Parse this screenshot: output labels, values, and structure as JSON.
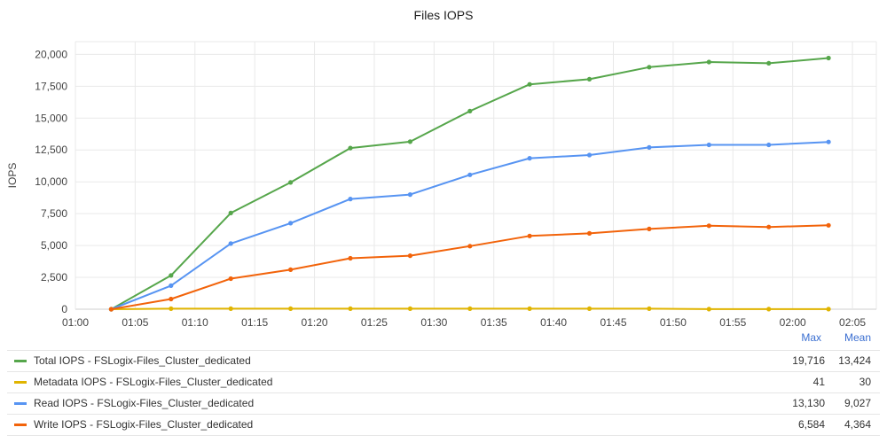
{
  "chart_data": {
    "type": "line",
    "title": "Files IOPS",
    "ylabel": "IOPS",
    "xlabel": "",
    "x_ticks": [
      "01:00",
      "01:05",
      "01:10",
      "01:15",
      "01:20",
      "01:25",
      "01:30",
      "01:35",
      "01:40",
      "01:45",
      "01:50",
      "01:55",
      "02:00",
      "02:05"
    ],
    "y_ticks": [
      "0",
      "2,500",
      "5,000",
      "7,500",
      "10,000",
      "12,500",
      "15,000",
      "17,500",
      "20,000"
    ],
    "xlim": [
      "01:00",
      "02:07"
    ],
    "ylim": [
      0,
      21000
    ],
    "grid": true,
    "legend_placement": "bottom",
    "x": [
      "01:03",
      "01:08",
      "01:13",
      "01:18",
      "01:23",
      "01:28",
      "01:33",
      "01:38",
      "01:43",
      "01:48",
      "01:53",
      "01:58",
      "02:03"
    ],
    "series": [
      {
        "name": "Total IOPS - FSLogix-Files_Cluster_dedicated",
        "color": "#56a64b",
        "values": [
          0,
          2650,
          7550,
          9950,
          12650,
          13150,
          15550,
          17650,
          18050,
          19000,
          19400,
          19300,
          19716
        ]
      },
      {
        "name": "Metadata IOPS - FSLogix-Files_Cluster_dedicated",
        "color": "#e0b400",
        "values": [
          0,
          40,
          41,
          40,
          40,
          40,
          40,
          40,
          40,
          40,
          5,
          5,
          5
        ]
      },
      {
        "name": "Read IOPS - FSLogix-Files_Cluster_dedicated",
        "color": "#5794f2",
        "values": [
          0,
          1850,
          5150,
          6750,
          8650,
          9000,
          10550,
          11850,
          12100,
          12700,
          12900,
          12900,
          13130
        ]
      },
      {
        "name": "Write IOPS - FSLogix-Files_Cluster_dedicated",
        "color": "#f2630a",
        "values": [
          0,
          800,
          2400,
          3100,
          4000,
          4200,
          4950,
          5750,
          5950,
          6300,
          6550,
          6450,
          6584
        ]
      }
    ]
  },
  "legend": {
    "max_header": "Max",
    "mean_header": "Mean",
    "rows": [
      {
        "name": "Total IOPS - FSLogix-Files_Cluster_dedicated",
        "max": "19,716",
        "mean": "13,424"
      },
      {
        "name": "Metadata IOPS - FSLogix-Files_Cluster_dedicated",
        "max": "41",
        "mean": "30"
      },
      {
        "name": "Read IOPS - FSLogix-Files_Cluster_dedicated",
        "max": "13,130",
        "mean": "9,027"
      },
      {
        "name": "Write IOPS - FSLogix-Files_Cluster_dedicated",
        "max": "6,584",
        "mean": "4,364"
      }
    ]
  }
}
